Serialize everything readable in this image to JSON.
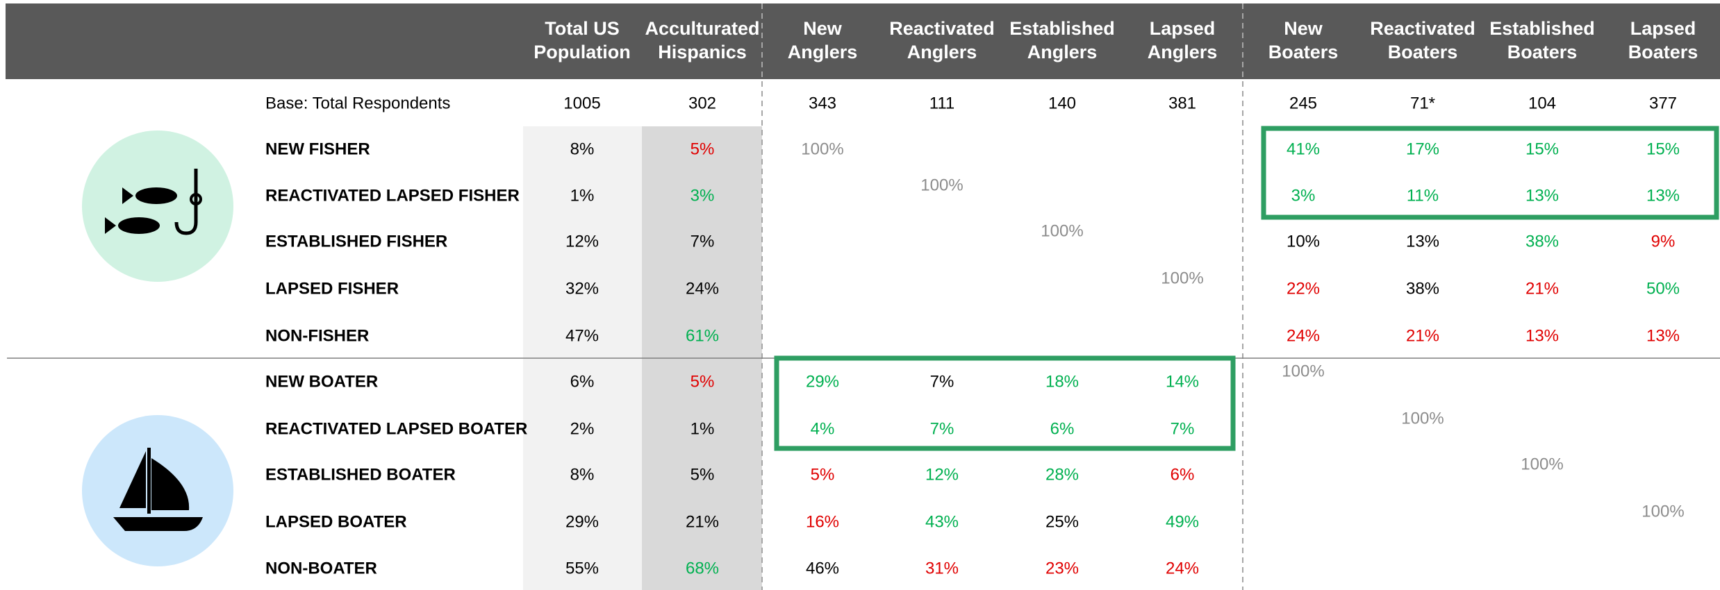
{
  "table": {
    "columns": [
      [
        "Total US",
        "Population"
      ],
      [
        "Acculturated",
        "Hispanics"
      ],
      [
        "New",
        "Anglers"
      ],
      [
        "Reactivated",
        "Anglers"
      ],
      [
        "Established",
        "Anglers"
      ],
      [
        "Lapsed",
        "Anglers"
      ],
      [
        "New",
        "Boaters"
      ],
      [
        "Reactivated",
        "Boaters"
      ],
      [
        "Established",
        "Boaters"
      ],
      [
        "Lapsed",
        "Boaters"
      ]
    ],
    "rows": [
      {
        "label": "Base: Total Respondents",
        "cells": [
          "1005",
          "302",
          "343",
          "111",
          "140",
          "381",
          "245",
          "71*",
          "104",
          "377"
        ],
        "colors": [
          "#000000",
          "#000000",
          "#000000",
          "#000000",
          "#000000",
          "#000000",
          "#000000",
          "#000000",
          "#000000",
          "#000000"
        ]
      },
      {
        "label": "NEW FISHER",
        "cells": [
          "8%",
          "5%",
          "100%",
          null,
          null,
          null,
          "41%",
          "17%",
          "15%",
          "15%"
        ],
        "colors": [
          "#000000",
          "#e00000",
          "#8c8c8c",
          null,
          null,
          null,
          "#00b050",
          "#00b050",
          "#00b050",
          "#00b050"
        ]
      },
      {
        "label": "REACTIVATED LAPSED FISHER",
        "cells": [
          "1%",
          "3%",
          null,
          "100%",
          null,
          null,
          "3%",
          "11%",
          "13%",
          "13%"
        ],
        "colors": [
          "#000000",
          "#00b050",
          null,
          "#8c8c8c",
          null,
          null,
          "#00b050",
          "#00b050",
          "#00b050",
          "#00b050"
        ]
      },
      {
        "label": "ESTABLISHED FISHER",
        "cells": [
          "12%",
          "7%",
          null,
          null,
          "100%",
          null,
          "10%",
          "13%",
          "38%",
          "9%"
        ],
        "colors": [
          "#000000",
          "#000000",
          null,
          null,
          "#8c8c8c",
          null,
          "#000000",
          "#000000",
          "#00b050",
          "#e00000"
        ]
      },
      {
        "label": "LAPSED FISHER",
        "cells": [
          "32%",
          "24%",
          null,
          null,
          null,
          "100%",
          "22%",
          "38%",
          "21%",
          "50%"
        ],
        "colors": [
          "#000000",
          "#000000",
          null,
          null,
          null,
          "#8c8c8c",
          "#e00000",
          "#000000",
          "#e00000",
          "#00b050"
        ]
      },
      {
        "label": "NON-FISHER",
        "cells": [
          "47%",
          "61%",
          null,
          null,
          null,
          null,
          "24%",
          "21%",
          "13%",
          "13%"
        ],
        "colors": [
          "#000000",
          "#00b050",
          null,
          null,
          null,
          null,
          "#e00000",
          "#e00000",
          "#e00000",
          "#e00000"
        ]
      },
      {
        "label": "NEW BOATER",
        "cells": [
          "6%",
          "5%",
          "29%",
          "7%",
          "18%",
          "14%",
          "100%",
          null,
          null,
          null
        ],
        "colors": [
          "#000000",
          "#e00000",
          "#00b050",
          "#000000",
          "#00b050",
          "#00b050",
          "#8c8c8c",
          null,
          null,
          null
        ]
      },
      {
        "label": "REACTIVATED LAPSED BOATER",
        "cells": [
          "2%",
          "1%",
          "4%",
          "7%",
          "6%",
          "7%",
          null,
          "100%",
          null,
          null
        ],
        "colors": [
          "#000000",
          "#000000",
          "#00b050",
          "#00b050",
          "#00b050",
          "#00b050",
          null,
          "#8c8c8c",
          null,
          null
        ]
      },
      {
        "label": "ESTABLISHED BOATER",
        "cells": [
          "8%",
          "5%",
          "5%",
          "12%",
          "28%",
          "6%",
          null,
          null,
          "100%",
          null
        ],
        "colors": [
          "#000000",
          "#000000",
          "#e00000",
          "#00b050",
          "#00b050",
          "#e00000",
          null,
          null,
          "#8c8c8c",
          null
        ]
      },
      {
        "label": "LAPSED BOATER",
        "cells": [
          "29%",
          "21%",
          "16%",
          "43%",
          "25%",
          "49%",
          null,
          null,
          null,
          "100%"
        ],
        "colors": [
          "#000000",
          "#000000",
          "#e00000",
          "#00b050",
          "#000000",
          "#00b050",
          null,
          null,
          null,
          "#8c8c8c"
        ]
      },
      {
        "label": "NON-BOATER",
        "cells": [
          "55%",
          "68%",
          "46%",
          "31%",
          "23%",
          "24%",
          null,
          null,
          null,
          null
        ],
        "colors": [
          "#000000",
          "#00b050",
          "#000000",
          "#e00000",
          "#e00000",
          "#e00000",
          null,
          null,
          null,
          null
        ]
      }
    ]
  }
}
